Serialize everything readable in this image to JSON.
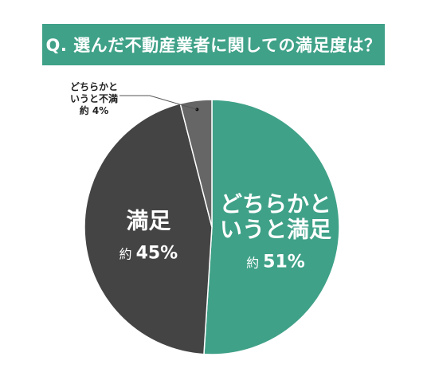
{
  "title": "Q. 選んだ不動産業者に関しての満足度は？",
  "chart_data": {
    "type": "pie",
    "title": "Q. 選んだ不動産業者に関しての満足度は？",
    "start": "12 o'clock",
    "direction": "clockwise",
    "slices": [
      {
        "label_lines": [
          "どちらかと",
          "いうと満足"
        ],
        "value": 51,
        "value_text": "51%",
        "prefix": "約",
        "color": "#3fa188"
      },
      {
        "label_lines": [
          "満足"
        ],
        "value": 45,
        "value_text": "45%",
        "prefix": "約",
        "color": "#444444"
      },
      {
        "label_lines": [
          "どちらかと",
          "いうと不満"
        ],
        "value": 4,
        "value_text": "4%",
        "prefix": "約",
        "color": "#666666"
      }
    ]
  }
}
